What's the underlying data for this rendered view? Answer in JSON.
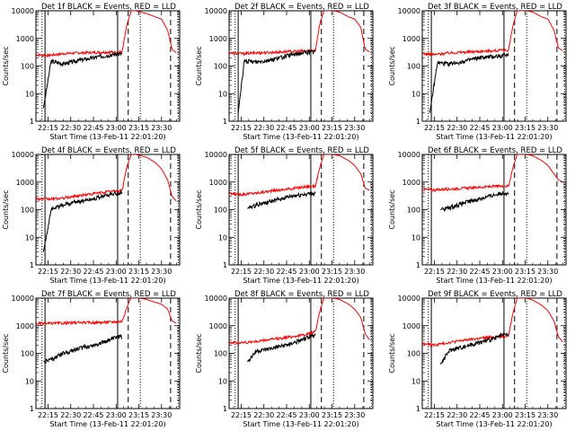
{
  "chart_data": {
    "type": "line",
    "y_scale": "log",
    "ylim": [
      1,
      10000
    ],
    "y_ticks": [
      "1",
      "10",
      "100",
      "1000",
      "10000"
    ],
    "ylabel": "Counts/sec",
    "x_ticks": [
      "22:15",
      "22:30",
      "22:45",
      "23:00",
      "23:15",
      "23:30"
    ],
    "xlabel": "Start Time (13-Feb-11 22:01:20)",
    "xlim_minutes_after_22_00": [
      7,
      102
    ],
    "solid_markers_minutes": [
      13,
      61
    ],
    "dotted_markers_minutes": [
      76,
      101
    ],
    "dashed_markers_minutes": [
      68,
      96
    ],
    "legend_text": "BLACK = Events, RED = LLD",
    "series_names": [
      "Events",
      "LLD"
    ],
    "series_colors": {
      "Events": "#000000",
      "LLD": "#ff0000"
    },
    "panels": [
      {
        "title": "Det 1f BLACK = Events, RED = LLD",
        "events": {
          "start": 12,
          "x": [
            12,
            17,
            25,
            35,
            45,
            55,
            60,
            64
          ],
          "y": [
            3,
            150,
            120,
            160,
            200,
            250,
            270,
            280
          ],
          "gap": [
            64,
            68
          ]
        },
        "lld": {
          "x": [
            7,
            15,
            25,
            35,
            45,
            55,
            60,
            64,
            67,
            70,
            73,
            76,
            80,
            86,
            90,
            94,
            97,
            100
          ],
          "y": [
            260,
            240,
            280,
            300,
            310,
            320,
            320,
            330,
            3000,
            10000,
            10000,
            9000,
            8000,
            6000,
            5000,
            2000,
            400,
            300
          ]
        }
      },
      {
        "title": "Det 2f BLACK = Events, RED = LLD",
        "events": {
          "start": 13,
          "x": [
            13,
            17,
            25,
            35,
            45,
            55,
            60,
            64
          ],
          "y": [
            2,
            150,
            140,
            170,
            230,
            300,
            320,
            330
          ],
          "gap": [
            64,
            68
          ]
        },
        "lld": {
          "x": [
            7,
            15,
            25,
            35,
            45,
            55,
            60,
            64,
            67,
            70,
            73,
            76,
            80,
            86,
            90,
            94,
            97,
            100
          ],
          "y": [
            300,
            280,
            300,
            310,
            330,
            350,
            360,
            380,
            3500,
            11000,
            11000,
            10000,
            9000,
            6000,
            5000,
            2500,
            400,
            320
          ]
        }
      },
      {
        "title": "Det 3f BLACK = Events, RED = LLD",
        "events": {
          "start": 12,
          "x": [
            12,
            17,
            25,
            35,
            45,
            55,
            60,
            64
          ],
          "y": [
            2,
            130,
            120,
            150,
            200,
            220,
            240,
            260
          ],
          "gap": [
            64,
            68
          ]
        },
        "lld": {
          "x": [
            7,
            15,
            25,
            35,
            45,
            55,
            60,
            64,
            67,
            70,
            73,
            76,
            80,
            86,
            90,
            94,
            97,
            100
          ],
          "y": [
            280,
            260,
            300,
            320,
            340,
            360,
            370,
            380,
            3000,
            11000,
            11000,
            10000,
            9000,
            6000,
            5000,
            2000,
            450,
            350
          ]
        }
      },
      {
        "title": "Det 4f BLACK = Events, RED = LLD",
        "events": {
          "start": 12,
          "x": [
            12,
            17,
            25,
            35,
            45,
            55,
            60,
            64
          ],
          "y": [
            3,
            100,
            150,
            200,
            250,
            350,
            380,
            400
          ],
          "gap": [
            64,
            68
          ]
        },
        "lld": {
          "x": [
            7,
            15,
            25,
            35,
            45,
            55,
            60,
            64,
            67,
            70,
            73,
            76,
            80,
            86,
            90,
            94,
            97,
            100
          ],
          "y": [
            250,
            240,
            260,
            320,
            380,
            450,
            480,
            500,
            3500,
            10000,
            10000,
            9000,
            8000,
            5000,
            3000,
            1200,
            300,
            200
          ]
        }
      },
      {
        "title": "Det 5f BLACK = Events, RED = LLD",
        "events": {
          "start": 19,
          "x": [
            19,
            25,
            35,
            45,
            55,
            60,
            64
          ],
          "y": [
            110,
            150,
            200,
            280,
            350,
            380,
            390
          ],
          "gap": [
            64,
            68
          ]
        },
        "lld": {
          "x": [
            7,
            15,
            25,
            35,
            45,
            55,
            60,
            64,
            67,
            70,
            73,
            76,
            80,
            86,
            90,
            94,
            97,
            100
          ],
          "y": [
            380,
            360,
            400,
            480,
            550,
            650,
            700,
            720,
            3500,
            11000,
            11000,
            10000,
            9000,
            6000,
            4000,
            2000,
            600,
            500
          ]
        }
      },
      {
        "title": "Det 6f BLACK = Events, RED = LLD",
        "events": {
          "start": 19,
          "x": [
            19,
            25,
            35,
            45,
            55,
            60,
            64
          ],
          "y": [
            100,
            120,
            180,
            250,
            350,
            400,
            420
          ],
          "gap": [
            64,
            68
          ]
        },
        "lld": {
          "x": [
            7,
            15,
            25,
            35,
            45,
            55,
            60,
            64,
            67,
            70,
            73,
            76,
            80,
            86,
            90,
            94,
            97,
            100
          ],
          "y": [
            550,
            520,
            560,
            600,
            650,
            700,
            700,
            720,
            3500,
            11000,
            11000,
            10000,
            9000,
            6000,
            4000,
            2000,
            1200,
            1000
          ]
        }
      },
      {
        "title": "Det 7f BLACK = Events, RED = LLD",
        "events": {
          "start": 12,
          "x": [
            12,
            17,
            25,
            35,
            45,
            55,
            60,
            64
          ],
          "y": [
            50,
            60,
            100,
            150,
            200,
            300,
            380,
            420
          ],
          "gap": [
            64,
            68
          ]
        },
        "lld": {
          "x": [
            7,
            15,
            25,
            35,
            45,
            55,
            60,
            64,
            67,
            70,
            73,
            76,
            80,
            86,
            90,
            94,
            97,
            100
          ],
          "y": [
            1200,
            1200,
            1250,
            1300,
            1300,
            1350,
            1400,
            1450,
            4500,
            11000,
            11000,
            10000,
            9000,
            7000,
            6000,
            4000,
            1500,
            1200
          ]
        }
      },
      {
        "title": "Det 8f BLACK = Events, RED = LLD",
        "events": {
          "start": 19,
          "x": [
            19,
            25,
            35,
            45,
            55,
            60,
            64
          ],
          "y": [
            50,
            120,
            150,
            200,
            300,
            400,
            450
          ],
          "gap": [
            64,
            68
          ]
        },
        "lld": {
          "x": [
            7,
            15,
            25,
            35,
            45,
            55,
            60,
            64,
            67,
            70,
            73,
            76,
            80,
            86,
            90,
            94,
            97,
            100
          ],
          "y": [
            250,
            240,
            270,
            320,
            380,
            450,
            520,
            600,
            3500,
            11000,
            11000,
            10000,
            9000,
            6000,
            4000,
            2000,
            500,
            300
          ]
        }
      },
      {
        "title": "Det 9f BLACK = Events, RED = LLD",
        "events": {
          "start": 19,
          "x": [
            19,
            25,
            35,
            45,
            55,
            60,
            64
          ],
          "y": [
            40,
            130,
            180,
            250,
            350,
            450,
            480
          ],
          "gap": [
            64,
            68
          ]
        },
        "lld": {
          "x": [
            7,
            15,
            25,
            35,
            45,
            55,
            60,
            64,
            67,
            70,
            73,
            76,
            80,
            86,
            90,
            94,
            97,
            100
          ],
          "y": [
            220,
            200,
            250,
            300,
            350,
            400,
            420,
            450,
            3000,
            11000,
            11000,
            10000,
            8500,
            5500,
            3500,
            1500,
            400,
            250
          ]
        }
      }
    ]
  }
}
